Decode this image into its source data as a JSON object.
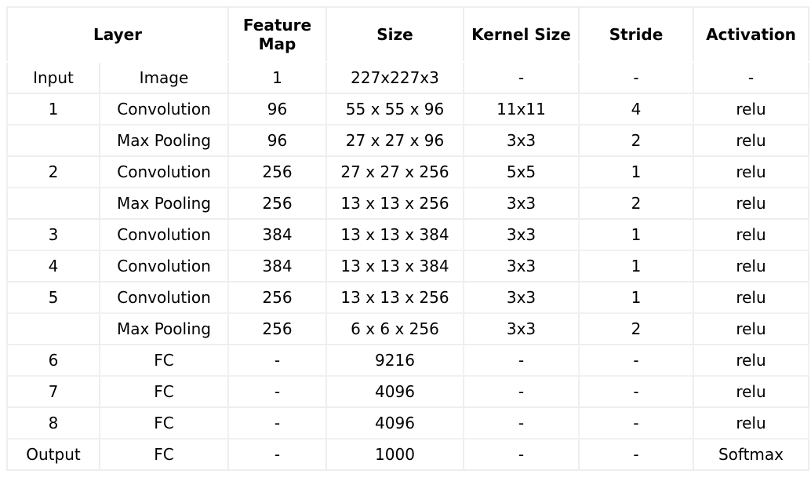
{
  "table": {
    "headers": {
      "layer": "Layer",
      "feature_map_line1": "Feature",
      "feature_map_line2": "Map",
      "size": "Size",
      "kernel_size": "Kernel Size",
      "stride": "Stride",
      "activation": "Activation"
    },
    "rows": [
      {
        "num": "Input",
        "type": "Image",
        "fmap": "1",
        "size": "227x227x3",
        "kernel": "-",
        "stride": "-",
        "act": "-"
      },
      {
        "num": "1",
        "type": "Convolution",
        "fmap": "96",
        "size": "55 x 55 x 96",
        "kernel": "11x11",
        "stride": "4",
        "act": "relu"
      },
      {
        "num": "",
        "type": "Max Pooling",
        "fmap": "96",
        "size": "27 x 27 x 96",
        "kernel": "3x3",
        "stride": "2",
        "act": "relu"
      },
      {
        "num": "2",
        "type": "Convolution",
        "fmap": "256",
        "size": "27 x 27 x 256",
        "kernel": "5x5",
        "stride": "1",
        "act": "relu"
      },
      {
        "num": "",
        "type": "Max Pooling",
        "fmap": "256",
        "size": "13 x 13 x 256",
        "kernel": "3x3",
        "stride": "2",
        "act": "relu"
      },
      {
        "num": "3",
        "type": "Convolution",
        "fmap": "384",
        "size": "13 x 13 x 384",
        "kernel": "3x3",
        "stride": "1",
        "act": "relu"
      },
      {
        "num": "4",
        "type": "Convolution",
        "fmap": "384",
        "size": "13 x 13 x 384",
        "kernel": "3x3",
        "stride": "1",
        "act": "relu"
      },
      {
        "num": "5",
        "type": "Convolution",
        "fmap": "256",
        "size": "13 x 13 x 256",
        "kernel": "3x3",
        "stride": "1",
        "act": "relu"
      },
      {
        "num": "",
        "type": "Max Pooling",
        "fmap": "256",
        "size": "6 x 6 x 256",
        "kernel": "3x3",
        "stride": "2",
        "act": "relu"
      },
      {
        "num": "6",
        "type": "FC",
        "fmap": "-",
        "size": "9216",
        "kernel": "-",
        "stride": "-",
        "act": "relu"
      },
      {
        "num": "7",
        "type": "FC",
        "fmap": "-",
        "size": "4096",
        "kernel": "-",
        "stride": "-",
        "act": "relu"
      },
      {
        "num": "8",
        "type": "FC",
        "fmap": "-",
        "size": "4096",
        "kernel": "-",
        "stride": "-",
        "act": "relu"
      },
      {
        "num": "Output",
        "type": "FC",
        "fmap": "-",
        "size": "1000",
        "kernel": "-",
        "stride": "-",
        "act": "Softmax"
      }
    ]
  }
}
